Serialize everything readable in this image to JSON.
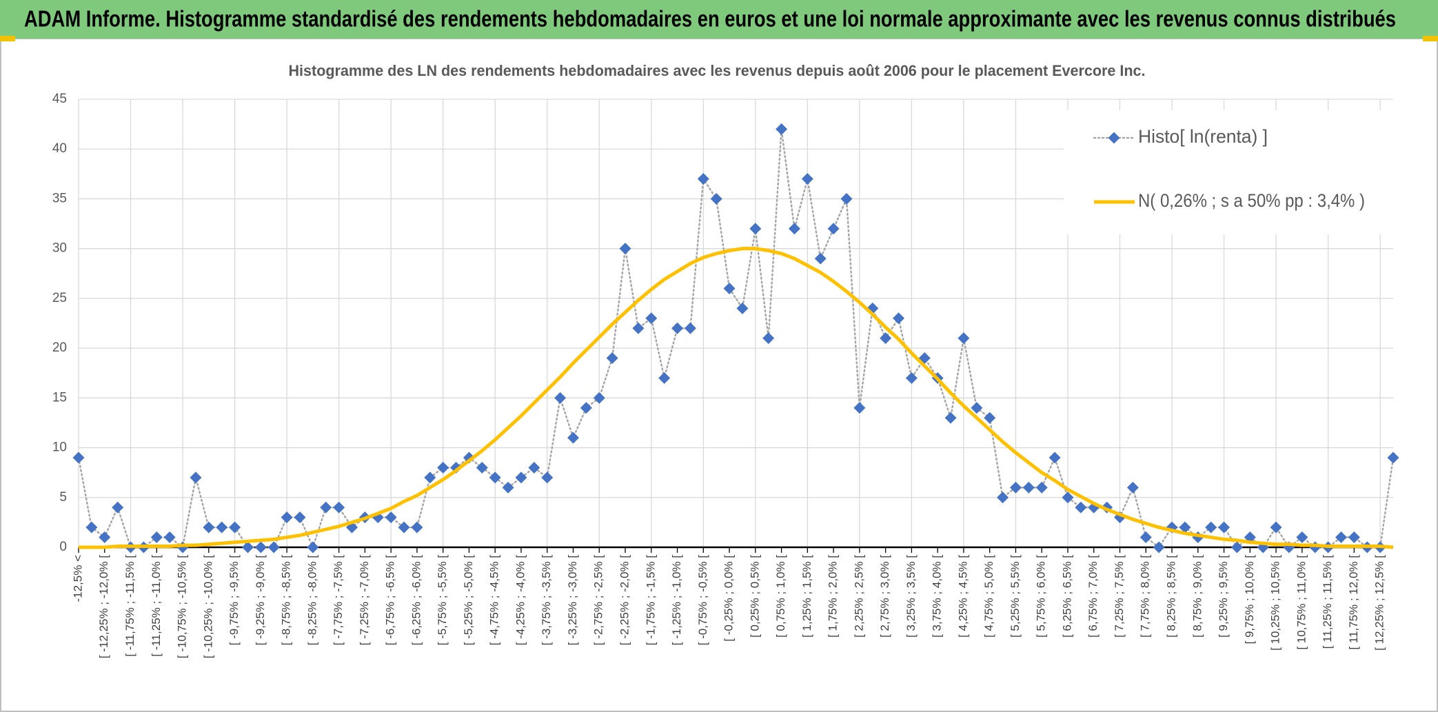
{
  "chart_data": {
    "type": "line",
    "page_title": "ADAM Informe. Histogramme standardisé des rendements hebdomadaires en euros et une loi normale approximante avec les revenus connus distribués",
    "title": "Histogramme des LN des rendements hebdomadaires avec les revenus depuis août 2006 pour le placement Evercore Inc.",
    "categories": [
      "-12,5% <",
      null,
      "[ -12,25% ; -12,0% [",
      null,
      "[ -11,75% ; -11,5% [",
      null,
      "[ -11,25% ; -11,0% [",
      null,
      "[ -10,75% ; -10,5% [",
      null,
      "[ -10,25% ; -10,0% [",
      null,
      "[ -9,75% ; -9,5% [",
      null,
      "[ -9,25% ; -9,0% [",
      null,
      "[ -8,75% ; -8,5% [",
      null,
      "[ -8,25% ; -8,0% [",
      null,
      "[ -7,75% ; -7,5% [",
      null,
      "[ -7,25% ; -7,0% [",
      null,
      "[ -6,75% ; -6,5% [",
      null,
      "[ -6,25% ; -6,0% [",
      null,
      "[ -5,75% ; -5,5% [",
      null,
      "[ -5,25% ; -5,0% [",
      null,
      "[ -4,75% ; -4,5% [",
      null,
      "[ -4,25% ; -4,0% [",
      null,
      "[ -3,75% ; -3,5% [",
      null,
      "[ -3,25% ; -3,0% [",
      null,
      "[ -2,75% ; -2,5% [",
      null,
      "[ -2,25% ; -2,0% [",
      null,
      "[ -1,75% ; -1,5% [",
      null,
      "[ -1,25% ; -1,0% [",
      null,
      "[ -0,75% ; -0,5% [",
      null,
      "[ -0,25% ; 0,0% [",
      null,
      "[ 0,25% ; 0,5% [",
      null,
      "[ 0,75% ; 1,0% [",
      null,
      "[ 1,25% ; 1,5% [",
      null,
      "[ 1,75% ; 2,0% [",
      null,
      "[ 2,25% ; 2,5% [",
      null,
      "[ 2,75% ; 3,0% [",
      null,
      "[ 3,25% ; 3,5% [",
      null,
      "[ 3,75% ; 4,0% [",
      null,
      "[ 4,25% ; 4,5% [",
      null,
      "[ 4,75% ; 5,0% [",
      null,
      "[ 5,25% ; 5,5% [",
      null,
      "[ 5,75% ; 6,0% [",
      null,
      "[ 6,25% ; 6,5% [",
      null,
      "[ 6,75% ; 7,0% [",
      null,
      "[ 7,25% ; 7,5% [",
      null,
      "[ 7,75% ; 8,0% [",
      null,
      "[ 8,25% ; 8,5% [",
      null,
      "[ 8,75% ; 9,0% [",
      null,
      "[ 9,25% ; 9,5% [",
      null,
      "[ 9,75% ; 10,0% [",
      null,
      "[ 10,25% ; 10,5% [",
      null,
      "[ 10,75% ; 11,0% [",
      null,
      "[ 11,25% ; 11,5% [",
      null,
      "[ 11,75% ; 12,0% [",
      null,
      "[ 12,25% ; 12,5% [",
      null
    ],
    "series": [
      {
        "name": "Histo[ ln(renta) ]",
        "color": "#4472c4",
        "line_color": "#a6a6a6",
        "marker": "diamond",
        "values": [
          9,
          2,
          1,
          4,
          0,
          0,
          1,
          1,
          0,
          7,
          2,
          2,
          2,
          0,
          0,
          0,
          3,
          3,
          0,
          4,
          4,
          2,
          3,
          3,
          3,
          2,
          2,
          7,
          8,
          8,
          9,
          8,
          7,
          6,
          7,
          8,
          7,
          15,
          11,
          14,
          15,
          19,
          30,
          22,
          23,
          17,
          22,
          22,
          37,
          35,
          26,
          24,
          32,
          21,
          42,
          32,
          37,
          29,
          32,
          35,
          14,
          24,
          21,
          23,
          17,
          19,
          17,
          13,
          21,
          14,
          13,
          5,
          6,
          6,
          6,
          9,
          5,
          4,
          4,
          4,
          3,
          6,
          1,
          0,
          2,
          2,
          1,
          2,
          2,
          0,
          1,
          0,
          2,
          0,
          1,
          0,
          0,
          1,
          1,
          0,
          0,
          9
        ]
      },
      {
        "name": "N( 0,26% ; s a 50% pp : 3,4% )",
        "color": "#ffc000",
        "values": [
          0.0,
          0.0,
          0.0,
          0.1,
          0.1,
          0.1,
          0.1,
          0.1,
          0.2,
          0.2,
          0.3,
          0.4,
          0.5,
          0.6,
          0.7,
          0.8,
          1.0,
          1.2,
          1.5,
          1.8,
          2.1,
          2.5,
          2.9,
          3.4,
          3.9,
          4.6,
          5.2,
          6.0,
          6.8,
          7.7,
          8.7,
          9.7,
          10.8,
          12.0,
          13.2,
          14.5,
          15.8,
          17.1,
          18.5,
          19.8,
          21.1,
          22.4,
          23.6,
          24.8,
          25.9,
          26.9,
          27.7,
          28.5,
          29.1,
          29.5,
          29.8,
          30.0,
          30.0,
          29.8,
          29.5,
          29.0,
          28.3,
          27.6,
          26.7,
          25.7,
          24.6,
          23.4,
          22.1,
          20.9,
          19.5,
          18.2,
          16.9,
          15.5,
          14.2,
          13.0,
          11.8,
          10.6,
          9.5,
          8.5,
          7.5,
          6.7,
          5.8,
          5.1,
          4.4,
          3.8,
          3.3,
          2.8,
          2.4,
          2.0,
          1.7,
          1.4,
          1.2,
          1.0,
          0.8,
          0.7,
          0.5,
          0.4,
          0.3,
          0.3,
          0.2,
          0.2,
          0.1,
          0.1,
          0.1,
          0.1,
          0.1,
          0.0
        ]
      }
    ],
    "ylim": [
      0,
      45
    ],
    "yticks": [
      0,
      5,
      10,
      15,
      20,
      25,
      30,
      35,
      40,
      45
    ],
    "grid": true,
    "legend": "upper right"
  }
}
